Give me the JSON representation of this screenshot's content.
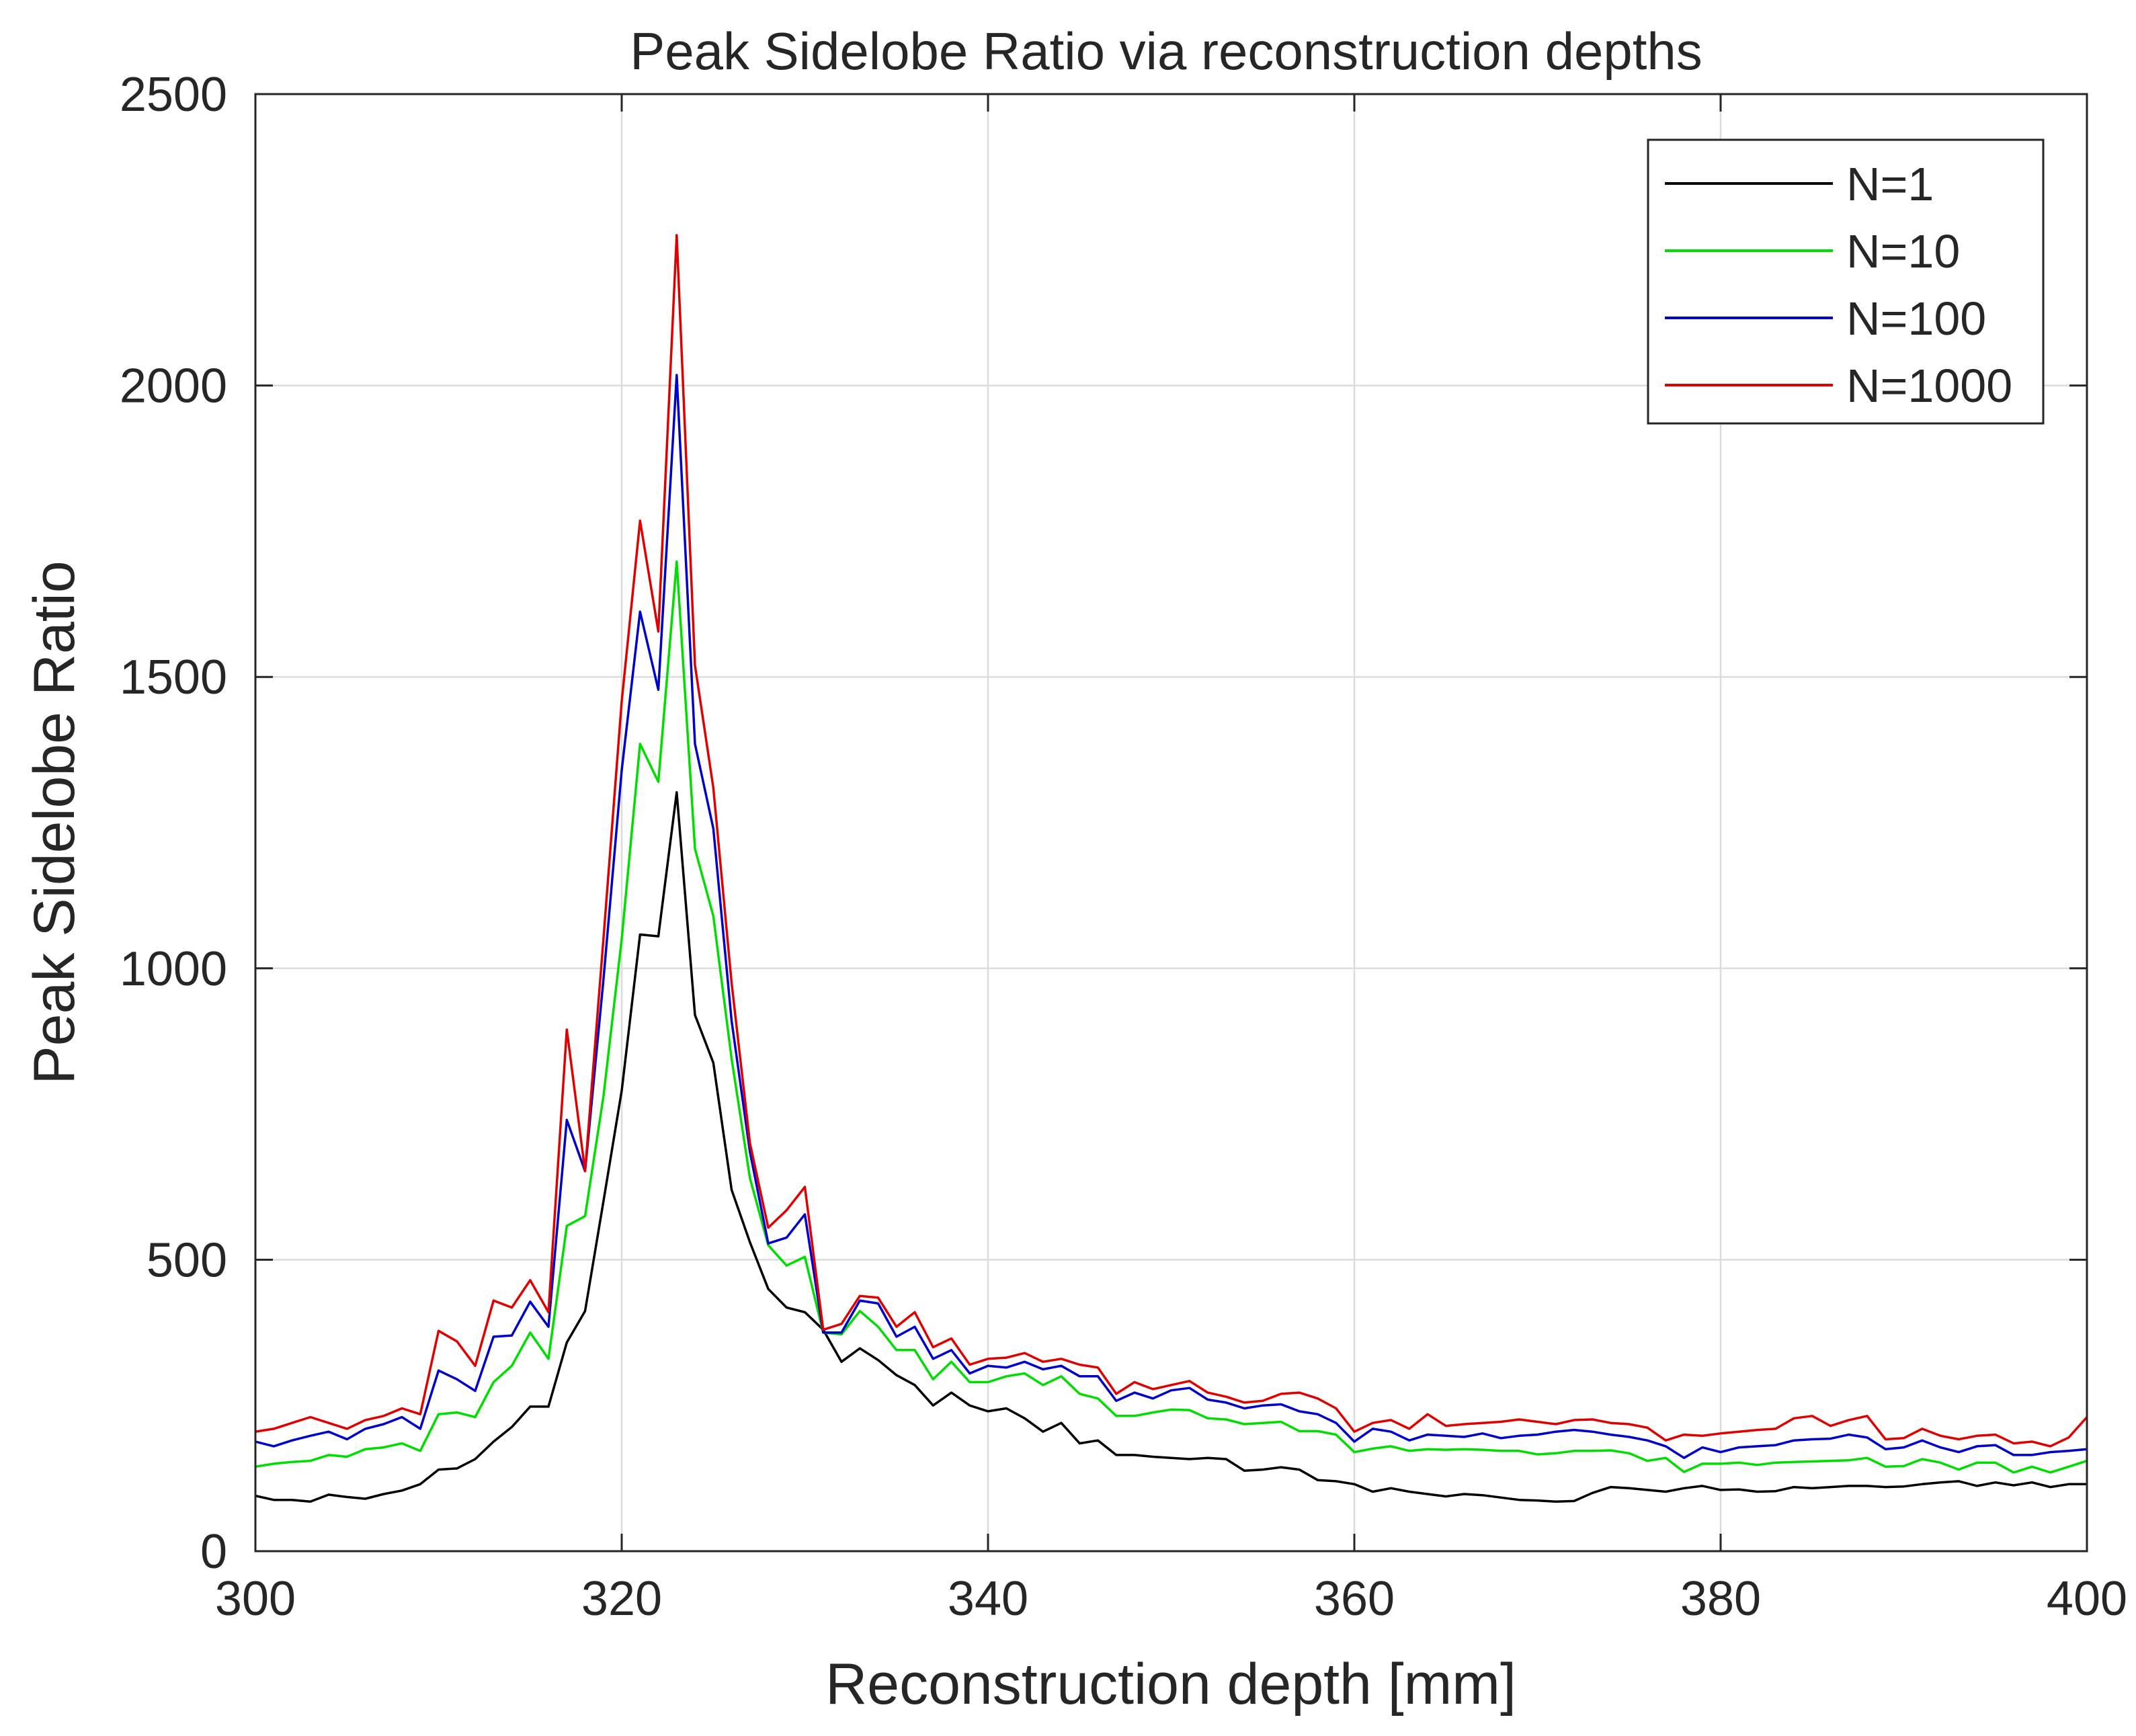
{
  "chart_data": {
    "type": "line",
    "title": "Peak Sidelobe Ratio via reconstruction depths",
    "xlabel": "Reconstruction depth [mm]",
    "ylabel": "Peak Sidelobe Ratio",
    "xlim": [
      300,
      400
    ],
    "ylim": [
      0,
      2500
    ],
    "xticks": [
      300,
      320,
      340,
      360,
      380,
      400
    ],
    "yticks": [
      0,
      500,
      1000,
      1500,
      2000,
      2500
    ],
    "xtick_labels": [
      "300",
      "320",
      "340",
      "360",
      "380",
      "400"
    ],
    "ytick_labels": [
      "0",
      "500",
      "1000",
      "1500",
      "2000",
      "2500"
    ],
    "grid": true,
    "legend_position": "top-right",
    "x": [
      300,
      301,
      302,
      303,
      304,
      305,
      306,
      307,
      308,
      309,
      310,
      311,
      312,
      313,
      314,
      315,
      316,
      317,
      318,
      319,
      320,
      321,
      322,
      323,
      324,
      325,
      326,
      327,
      328,
      329,
      330,
      331,
      332,
      333,
      334,
      335,
      336,
      337,
      338,
      339,
      340,
      341,
      342,
      343,
      344,
      345,
      346,
      347,
      348,
      349,
      350,
      351,
      352,
      353,
      354,
      355,
      356,
      357,
      358,
      359,
      360,
      361,
      362,
      363,
      364,
      365,
      366,
      367,
      368,
      369,
      370,
      371,
      372,
      373,
      374,
      375,
      376,
      377,
      378,
      379,
      380,
      381,
      382,
      383,
      384,
      385,
      386,
      387,
      388,
      389,
      390,
      391,
      392,
      393,
      394,
      395,
      396,
      397,
      398,
      399,
      400
    ],
    "series": [
      {
        "name": "N=1",
        "color": "#000000",
        "values": [
          95,
          88,
          88,
          85,
          97,
          93,
          90,
          98,
          104,
          115,
          140,
          142,
          158,
          188,
          213,
          248,
          248,
          358,
          412,
          600,
          790,
          1058,
          1055,
          1302,
          920,
          838,
          620,
          530,
          450,
          418,
          410,
          380,
          325,
          348,
          328,
          302,
          285,
          250,
          272,
          250,
          240,
          245,
          228,
          205,
          220,
          185,
          190,
          165,
          165,
          162,
          160,
          158,
          160,
          158,
          138,
          140,
          144,
          140,
          122,
          120,
          115,
          102,
          108,
          102,
          98,
          94,
          98,
          96,
          92,
          88,
          87,
          85,
          86,
          100,
          110,
          108,
          105,
          102,
          108,
          112,
          105,
          106,
          102,
          103,
          110,
          108,
          110,
          112,
          112,
          110,
          111,
          115,
          118,
          120,
          112,
          118,
          113,
          118,
          110,
          115,
          115
        ]
      },
      {
        "name": "N=10",
        "color": "#00dd00",
        "values": [
          145,
          150,
          153,
          155,
          165,
          162,
          175,
          178,
          185,
          172,
          235,
          238,
          230,
          290,
          318,
          375,
          330,
          558,
          575,
          780,
          1050,
          1385,
          1320,
          1698,
          1205,
          1090,
          845,
          640,
          525,
          490,
          505,
          375,
          372,
          412,
          385,
          345,
          345,
          295,
          325,
          290,
          290,
          300,
          305,
          285,
          300,
          270,
          262,
          232,
          232,
          238,
          243,
          242,
          228,
          226,
          218,
          220,
          222,
          206,
          206,
          200,
          170,
          176,
          180,
          172,
          175,
          174,
          175,
          174,
          172,
          172,
          166,
          168,
          172,
          172,
          173,
          168,
          155,
          160,
          136,
          150,
          150,
          152,
          148,
          152,
          153,
          154,
          155,
          156,
          160,
          145,
          146,
          158,
          152,
          140,
          152,
          152,
          135,
          145,
          135,
          145,
          155
        ]
      },
      {
        "name": "N=100",
        "color": "#0000cc",
        "values": [
          188,
          180,
          190,
          198,
          205,
          192,
          210,
          218,
          230,
          210,
          310,
          295,
          275,
          368,
          370,
          428,
          385,
          740,
          652,
          980,
          1340,
          1612,
          1478,
          2018,
          1385,
          1240,
          910,
          685,
          528,
          538,
          578,
          375,
          375,
          430,
          425,
          368,
          385,
          330,
          345,
          305,
          318,
          315,
          325,
          312,
          318,
          300,
          300,
          258,
          272,
          262,
          276,
          280,
          260,
          255,
          245,
          250,
          252,
          240,
          235,
          220,
          188,
          210,
          205,
          190,
          200,
          198,
          196,
          202,
          194,
          198,
          200,
          205,
          208,
          205,
          200,
          196,
          190,
          180,
          160,
          178,
          170,
          178,
          180,
          182,
          190,
          192,
          193,
          200,
          195,
          175,
          178,
          190,
          178,
          170,
          180,
          182,
          165,
          165,
          170,
          172,
          175
        ]
      },
      {
        "name": "N=1000",
        "color": "#e00000",
        "values": [
          205,
          210,
          220,
          230,
          220,
          210,
          225,
          232,
          245,
          235,
          378,
          360,
          318,
          430,
          418,
          465,
          410,
          895,
          652,
          1050,
          1458,
          1768,
          1578,
          2258,
          1520,
          1310,
          975,
          700,
          555,
          585,
          625,
          380,
          390,
          438,
          435,
          385,
          410,
          350,
          365,
          320,
          330,
          332,
          340,
          325,
          330,
          320,
          315,
          270,
          290,
          278,
          285,
          292,
          272,
          265,
          255,
          258,
          270,
          272,
          262,
          245,
          205,
          220,
          225,
          210,
          235,
          215,
          218,
          220,
          222,
          226,
          222,
          218,
          225,
          226,
          220,
          218,
          212,
          190,
          200,
          198,
          202,
          205,
          208,
          210,
          228,
          232,
          215,
          225,
          232,
          192,
          194,
          210,
          198,
          192,
          198,
          200,
          185,
          188,
          180,
          195,
          230
        ]
      }
    ]
  }
}
